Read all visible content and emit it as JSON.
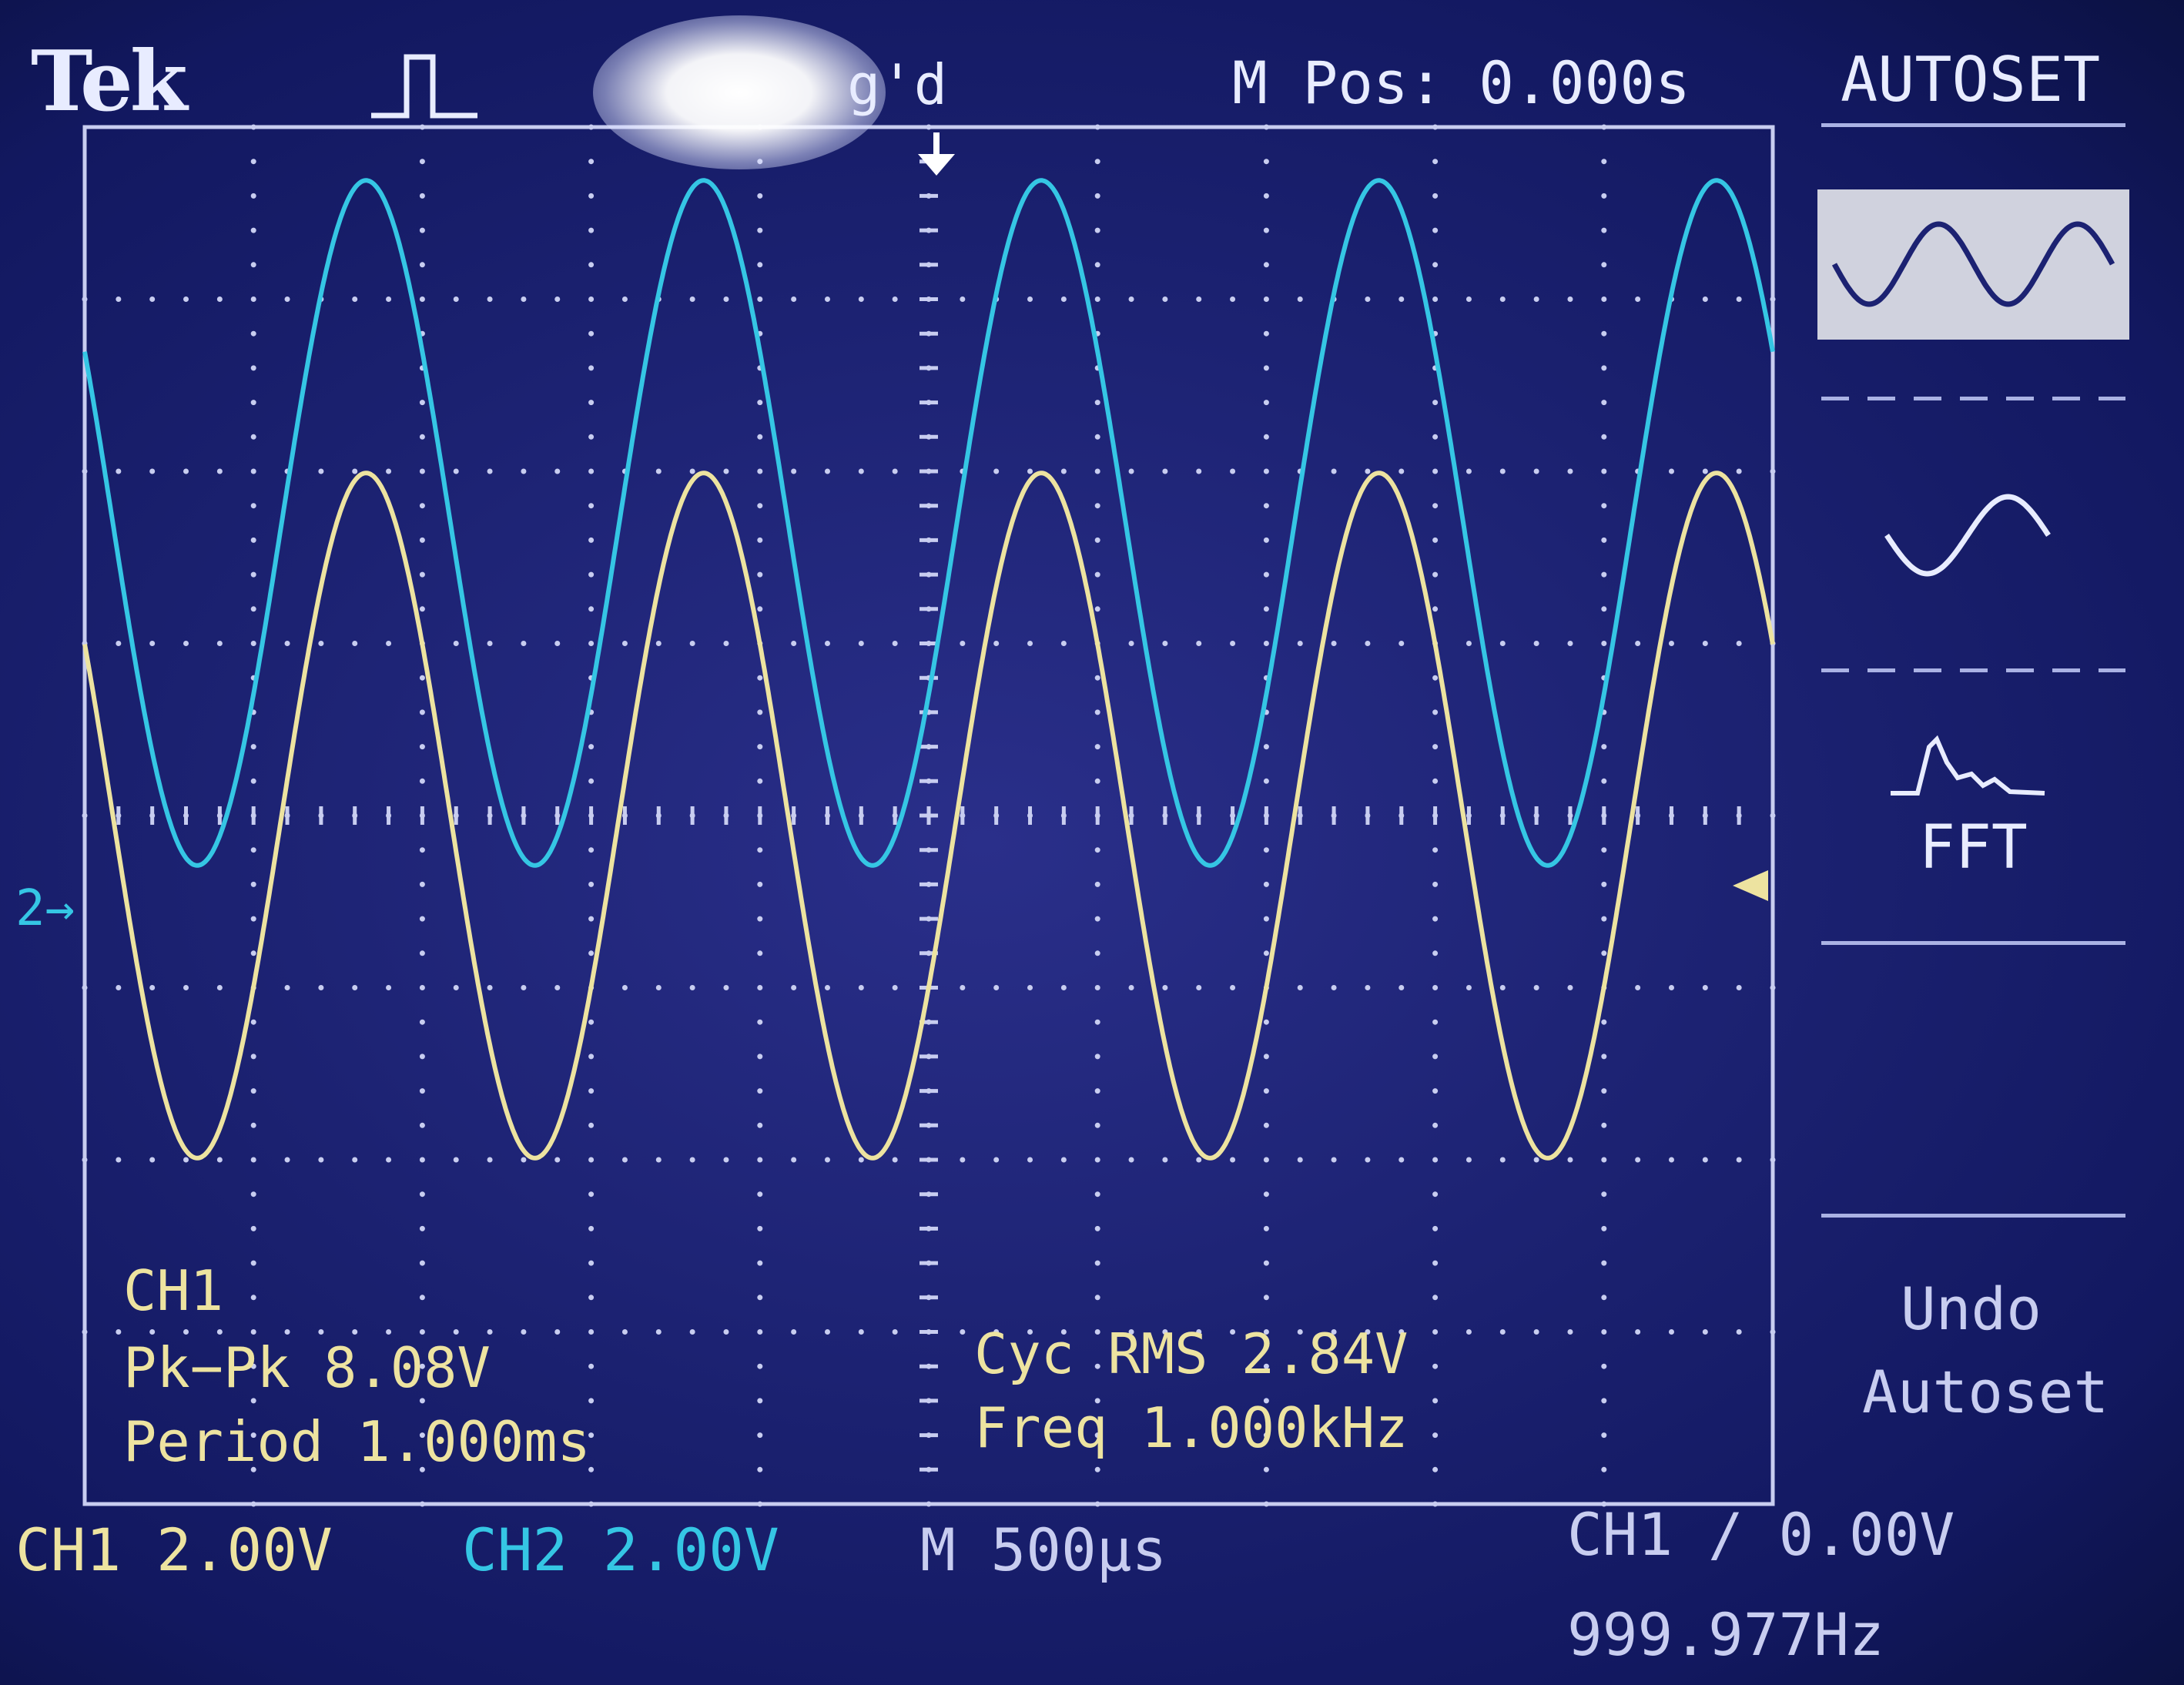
{
  "header": {
    "brand": "Tek",
    "trigger_state": "g'd",
    "main_position": "M Pos: 0.000s",
    "menu_title": "AUTOSET"
  },
  "side_menu": {
    "options": [
      {
        "name": "multi-cycle",
        "icon": "multi-cycle-sine-icon",
        "selected": true
      },
      {
        "name": "single-cycle",
        "icon": "single-cycle-sine-icon",
        "selected": false
      },
      {
        "name": "fft",
        "icon": "fft-spectrum-icon",
        "label": "FFT",
        "selected": false
      },
      {
        "name": "undo-autoset",
        "label_line1": "Undo",
        "label_line2": "Autoset"
      }
    ]
  },
  "measurements": {
    "source": "CH1",
    "pk_pk": "Pk−Pk 8.08V",
    "period": "Period 1.000ms",
    "cyc_rms": "Cyc RMS 2.84V",
    "freq": "Freq 1.000kHz"
  },
  "status_bar": {
    "ch1_scale": "CH1  2.00V",
    "ch2_scale": "CH2  2.00V",
    "time_scale": "M 500µs",
    "trigger": "CH1 ∕ 0.00V",
    "trigger_freq": "999.977Hz"
  },
  "markers": {
    "ch2_ground": "2→"
  },
  "colors": {
    "ch1": "#ede3a0",
    "ch2": "#35c6e4",
    "grid": "#c8cdf0",
    "background": "#1c2272"
  },
  "display": {
    "horizontal_divisions": 10,
    "vertical_divisions": 8,
    "time_per_div_us": 500,
    "volts_per_div": 2.0
  },
  "traces": [
    {
      "channel": "CH1",
      "frequency_hz": 1000,
      "amplitude_div": 1.99,
      "offset_div": 0,
      "phase_deg": -30
    },
    {
      "channel": "CH2",
      "frequency_hz": 1000,
      "amplitude_div": 1.99,
      "offset_div": 1.7,
      "phase_deg": -30
    }
  ]
}
